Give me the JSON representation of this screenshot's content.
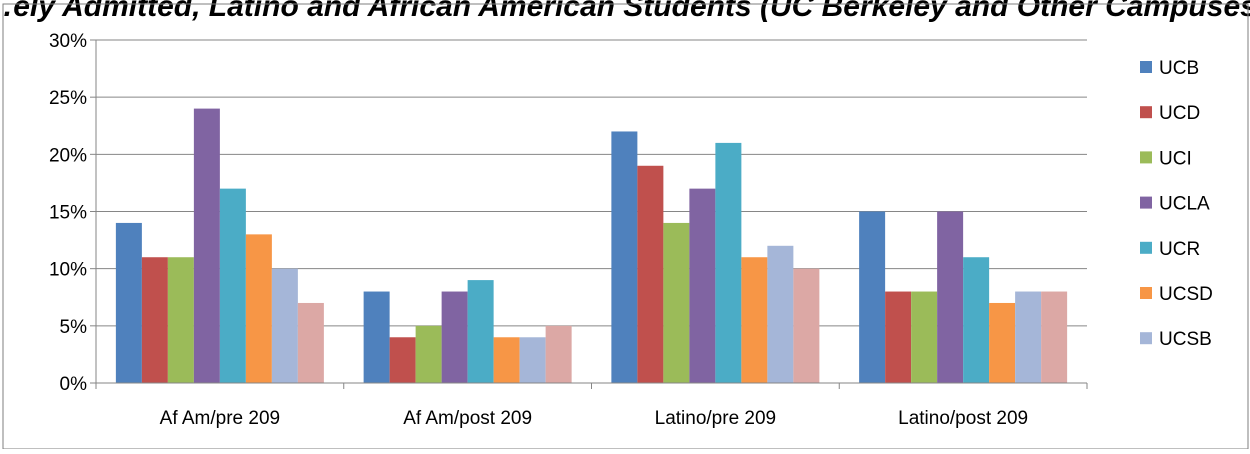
{
  "chart_data": {
    "type": "bar",
    "title": "…ely Admitted, Latino and African American Students (UC Berkeley and Other Campuses)",
    "xlabel": "",
    "ylabel": "",
    "categories": [
      "Af Am/pre 209",
      "Af Am/post 209",
      "Latino/pre 209",
      "Latino/post 209"
    ],
    "ylim": [
      0,
      30
    ],
    "yticks": [
      "0%",
      "5%",
      "10%",
      "15%",
      "20%",
      "25%",
      "30%"
    ],
    "grid": true,
    "legend_position": "right",
    "series": [
      {
        "name": "UCB",
        "color": "#4f81bd",
        "values": [
          14,
          8,
          22,
          15
        ]
      },
      {
        "name": "UCD",
        "color": "#c0504d",
        "values": [
          11,
          4,
          19,
          8
        ]
      },
      {
        "name": "UCI",
        "color": "#9bbb59",
        "values": [
          11,
          5,
          14,
          8
        ]
      },
      {
        "name": "UCLA",
        "color": "#8064a2",
        "values": [
          24,
          8,
          17,
          15
        ]
      },
      {
        "name": "UCR",
        "color": "#4bacc6",
        "values": [
          17,
          9,
          21,
          11
        ]
      },
      {
        "name": "UCSD",
        "color": "#f79646",
        "values": [
          13,
          4,
          11,
          7
        ]
      },
      {
        "name": "UCSB",
        "color": "#a5b6d8",
        "values": [
          10,
          4,
          12,
          8
        ]
      },
      {
        "color": "#dca8a5",
        "values": [
          7,
          5,
          10,
          8
        ]
      }
    ]
  }
}
